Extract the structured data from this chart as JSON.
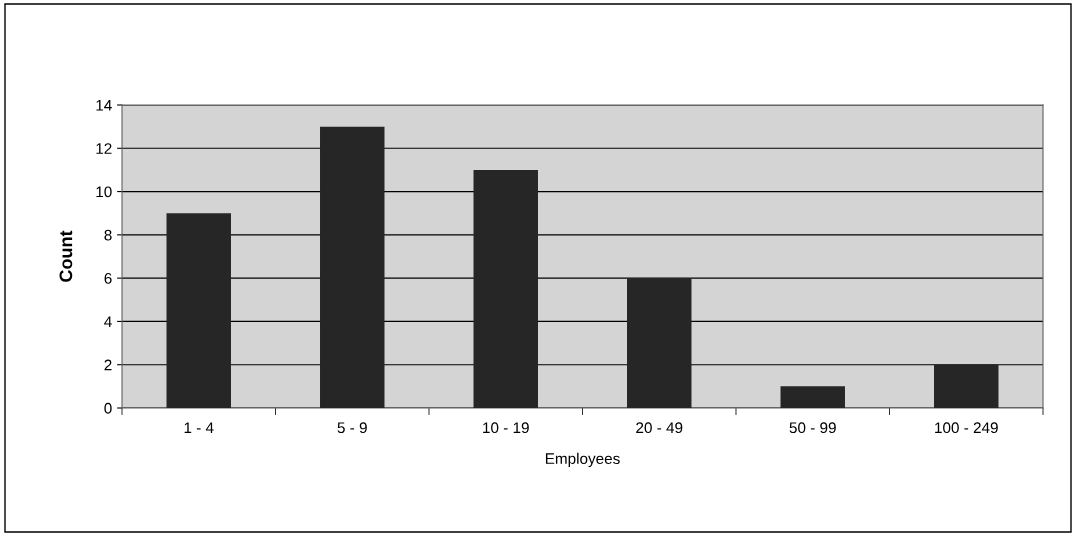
{
  "chart_data": {
    "type": "bar",
    "xlabel": "Employees",
    "ylabel": "Count",
    "categories": [
      "1 - 4",
      "5 - 9",
      "10 - 19",
      "20 - 49",
      "50 - 99",
      "100 - 249"
    ],
    "values": [
      9,
      13,
      11,
      6,
      1,
      2
    ],
    "color": "#262626",
    "ylim": [
      0,
      14
    ],
    "yticks": [
      0,
      2,
      4,
      6,
      8,
      10,
      12,
      14
    ],
    "grid": "y",
    "legend": false
  }
}
